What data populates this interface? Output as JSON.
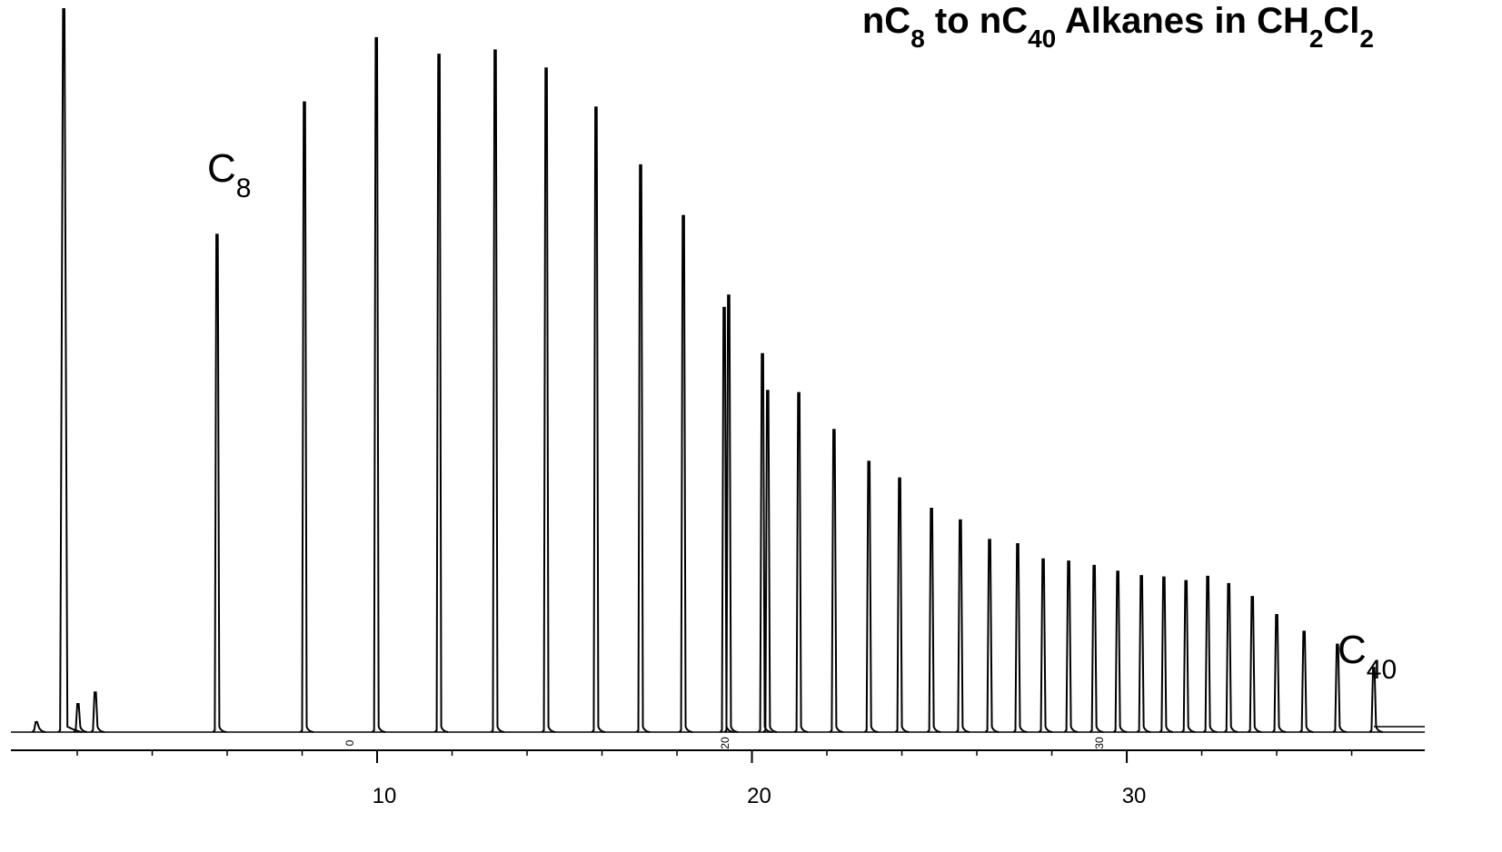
{
  "chart_data": {
    "type": "chromatogram",
    "title_parts": [
      "nC",
      "8",
      " to nC",
      "40",
      " Alkanes in CH",
      "2",
      "Cl",
      "2"
    ],
    "annotations": [
      [
        "C",
        "8"
      ],
      [
        "C",
        "40"
      ]
    ],
    "rotated_labels": [
      "0",
      "20",
      "30"
    ],
    "series": [
      {
        "color": "#000000",
        "x": [
          0.91,
          1.64,
          2.02,
          2.48,
          5.73,
          8.06,
          9.98,
          11.65,
          13.15,
          14.51,
          15.84,
          17.03,
          18.17,
          19.26,
          19.38,
          20.28,
          20.42,
          21.25,
          22.19,
          23.12,
          23.94,
          24.79,
          25.56,
          26.34,
          27.09,
          27.77,
          28.45,
          29.13,
          29.76,
          30.39,
          30.99,
          31.58,
          32.16,
          32.72,
          33.35,
          34.0,
          34.73,
          35.62,
          36.59
        ],
        "values": [
          1.4,
          100,
          3.9,
          5.5,
          68.8,
          87.1,
          96.0,
          93.7,
          94.3,
          91.8,
          86.4,
          78.4,
          71.4,
          58.7,
          60.4,
          52.3,
          47.2,
          46.9,
          41.8,
          37.4,
          35.1,
          30.9,
          29.3,
          26.6,
          26.0,
          23.9,
          23.6,
          23.0,
          22.2,
          21.6,
          21.4,
          20.9,
          21.5,
          20.5,
          18.7,
          16.2,
          13.9,
          12.1,
          8.9
        ]
      }
    ],
    "xlim": [
      0.23,
      37.95
    ],
    "xticks": [
      10,
      20,
      30
    ],
    "xminor_ticks": [
      2,
      4,
      6,
      8,
      12,
      14,
      16,
      18,
      22,
      24,
      26,
      28,
      32,
      34,
      36
    ],
    "ylim": [
      0,
      100
    ]
  }
}
